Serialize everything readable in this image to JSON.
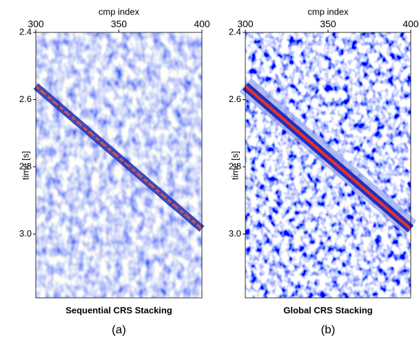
{
  "chart_data": [
    {
      "type": "image",
      "title": "Sequential CRS Stacking",
      "caption": "(a)",
      "xlabel": "cmp index",
      "ylabel": "time [s]",
      "xlim": [
        300,
        400
      ],
      "ylim": [
        2.4,
        3.19
      ],
      "xticks": [
        300,
        350,
        400
      ],
      "yticks": [
        2.4,
        2.6,
        2.8,
        {
          "value": 3.0,
          "label": "3.0"
        }
      ]
    },
    {
      "type": "image",
      "title": "Global CRS Stacking",
      "caption": "(b)",
      "xlabel": "cmp index",
      "ylabel": "time [s]",
      "xlim": [
        300,
        400
      ],
      "ylim": [
        2.4,
        3.19
      ],
      "xticks": [
        300,
        350,
        400
      ],
      "yticks": [
        2.4,
        2.6,
        2.8,
        {
          "value": 3.0,
          "label": "3.0"
        }
      ]
    }
  ]
}
